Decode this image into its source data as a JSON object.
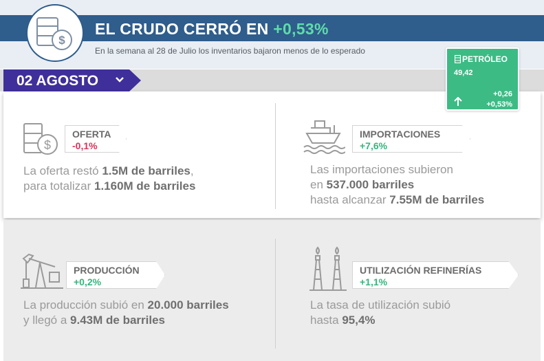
{
  "header": {
    "title_prefix": "EL CRUDO CERRÓ EN ",
    "title_pct": "+0,53%",
    "subtitle": "En la semana al 28 de Julio los inventarios bajaron menos de lo esperado",
    "icon": "barrel-dollar-icon"
  },
  "date": {
    "label": "02 AGOSTO",
    "icon": "chevron-down-icon"
  },
  "oil": {
    "name": "PETRÓLEO",
    "price": "49,42",
    "change_abs": "+0,26",
    "change_pct": "+0,53%",
    "direction_icon": "arrow-up-icon",
    "color": "#3dbb85"
  },
  "cards": {
    "oferta": {
      "name": "OFERTA",
      "value": "-0,1%",
      "icon": "barrel-dollar-icon",
      "line1_a": "La oferta restó ",
      "line1_b": "1.5M de barriles",
      "line1_c": ",",
      "line2_a": "para totalizar ",
      "line2_b": "1.160M de barriles"
    },
    "importaciones": {
      "name": "IMPORTACIONES",
      "value": "+7,6%",
      "icon": "ship-icon",
      "line1": "Las importaciones subieron",
      "line2_a": "en ",
      "line2_b": "537.000 barriles",
      "line3_a": "hasta alcanzar ",
      "line3_b": "7.55M de barriles"
    },
    "produccion": {
      "name": "PRODUCCIÓN",
      "value": "+0,2%",
      "icon": "oil-pump-icon",
      "line1_a": "La producción subió en ",
      "line1_b": "20.000 barriles",
      "line2_a": "y llegó a ",
      "line2_b": "9.43M de barriles"
    },
    "refinerias": {
      "name": "UTILIZACIÓN REFINERÍAS",
      "value": "+1,1%",
      "icon": "refinery-towers-icon",
      "line1": "La tasa de utilización subió",
      "line2_a": "hasta ",
      "line2_b": "95,4%"
    }
  },
  "colors": {
    "title_bar": "#2f5d8c",
    "date_ribbon": "#3f2f9a",
    "positive": "#35b57c",
    "negative": "#e0325c"
  }
}
